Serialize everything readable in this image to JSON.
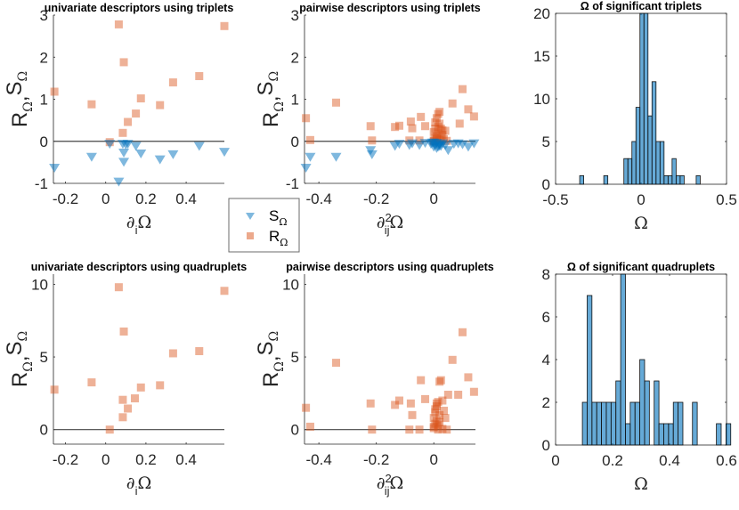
{
  "figure": {
    "legend": {
      "entries": [
        {
          "label": "S",
          "subscript": "Ω",
          "marker": "triangle-down",
          "color": "#0072BD"
        },
        {
          "label": "R",
          "subscript": "Ω",
          "marker": "square",
          "color": "#D95319"
        }
      ],
      "placement": "between top-left and top-middle panels, lower"
    },
    "colors": {
      "S": "#0072BD",
      "R": "#D95319",
      "hist": "#0072BD",
      "zero_line": "#555555"
    }
  },
  "chart_data": [
    {
      "id": "uni-trip",
      "type": "scatter",
      "title": "univariate descriptors using triplets",
      "xlabel": "∂_iΩ",
      "xlabel_main": "∂",
      "xlabel_sub": "i",
      "xlabel_tail": "Ω",
      "ylabel": "R_Ω, S_Ω",
      "xlim": [
        -0.26,
        0.59
      ],
      "ylim": [
        -1,
        3
      ],
      "xticks": [
        -0.2,
        0,
        0.2,
        0.4
      ],
      "xtick_labels": [
        "-0.2",
        "0",
        "0.2",
        "0.4"
      ],
      "yticks": [
        -1,
        0,
        1,
        2,
        3
      ],
      "ytick_labels": [
        "-1",
        "0",
        "1",
        "2",
        "3"
      ],
      "zero_line": true,
      "series": [
        {
          "name": "R_Ω",
          "marker": "square",
          "x": [
            -0.255,
            -0.07,
            0.02,
            0.065,
            0.09,
            0.085,
            0.11,
            0.15,
            0.175,
            0.27,
            0.335,
            0.465,
            0.59
          ],
          "y": [
            1.18,
            0.88,
            -0.02,
            2.78,
            1.88,
            0.2,
            0.46,
            0.66,
            1.02,
            0.86,
            1.4,
            1.55,
            2.74
          ]
        },
        {
          "name": "S_Ω",
          "marker": "triangle-down",
          "x": [
            -0.255,
            -0.07,
            0.02,
            0.065,
            0.085,
            0.09,
            0.09,
            0.1,
            0.11,
            0.15,
            0.175,
            0.27,
            0.335,
            0.465,
            0.59
          ],
          "y": [
            -0.62,
            -0.36,
            -0.05,
            -0.95,
            -0.05,
            -0.26,
            -0.48,
            -0.07,
            -0.05,
            -0.1,
            -0.28,
            -0.42,
            -0.3,
            -0.1,
            -0.24
          ]
        }
      ]
    },
    {
      "id": "pair-trip",
      "type": "scatter",
      "title": "pairwise descriptors using triplets",
      "xlabel": "∂²_ijΩ",
      "xlabel_main": "∂",
      "xlabel_sup": "2",
      "xlabel_sub": "ij",
      "xlabel_tail": "Ω",
      "ylabel": "R_Ω, S_Ω",
      "xlim": [
        -0.45,
        0.145
      ],
      "ylim": [
        -1,
        3
      ],
      "xticks": [
        -0.4,
        -0.2,
        0
      ],
      "xtick_labels": [
        "-0.4",
        "-0.2",
        "0"
      ],
      "yticks": [
        -1,
        0,
        1,
        2,
        3
      ],
      "ytick_labels": [
        "-1",
        "0",
        "1",
        "2",
        "3"
      ],
      "zero_line": true,
      "series": [
        {
          "name": "R_Ω",
          "marker": "square",
          "x": [
            -0.445,
            -0.43,
            -0.34,
            -0.22,
            -0.215,
            -0.135,
            -0.12,
            -0.08,
            -0.075,
            -0.045,
            -0.03,
            0.0,
            0.005,
            0.01,
            0.015,
            0.02,
            0.025,
            0.03,
            0.005,
            0.01,
            0.0,
            0.015,
            0.02,
            0.03,
            0.04,
            0.065,
            0.09,
            0.1,
            0.12,
            0.14,
            -0.085,
            -0.05,
            0.0,
            0.01,
            0.02,
            0.005,
            0.015,
            0.025,
            0.035,
            0.045
          ],
          "y": [
            0.55,
            0.03,
            0.92,
            0.36,
            0.02,
            0.34,
            0.37,
            0.47,
            0.31,
            0.58,
            0.36,
            0.22,
            0.45,
            0.55,
            0.65,
            0.7,
            0.3,
            0.15,
            0.1,
            0.05,
            0.0,
            0.35,
            0.42,
            0.26,
            0.25,
            0.9,
            0.42,
            1.24,
            0.76,
            0.59,
            0.02,
            0.02,
            0.02,
            0.12,
            0.02,
            0.3,
            0.18,
            0.08,
            0.05,
            0.01
          ]
        },
        {
          "name": "S_Ω",
          "marker": "triangle-down",
          "x": [
            -0.445,
            -0.43,
            -0.34,
            -0.22,
            -0.215,
            -0.135,
            -0.12,
            -0.085,
            -0.075,
            -0.05,
            -0.03,
            -0.01,
            0.0,
            0.005,
            0.01,
            0.015,
            0.02,
            0.025,
            0.03,
            0.04,
            0.05,
            0.07,
            0.085,
            0.1,
            0.12,
            0.14,
            0.0,
            0.01,
            0.02,
            -0.005
          ],
          "y": [
            -0.62,
            -0.36,
            -0.36,
            -0.2,
            -0.3,
            -0.1,
            -0.05,
            -0.08,
            -0.04,
            -0.08,
            -0.03,
            -0.05,
            -0.12,
            -0.08,
            -0.03,
            -0.12,
            -0.06,
            -0.1,
            -0.04,
            -0.08,
            -0.2,
            -0.05,
            -0.04,
            -0.06,
            -0.12,
            -0.04,
            -0.02,
            -0.15,
            -0.1,
            -0.02
          ]
        }
      ]
    },
    {
      "id": "hist-trip",
      "type": "bar",
      "subtype": "histogram",
      "title": "Ω of significant triplets",
      "xlabel": "Ω",
      "ylabel": "",
      "xlim": [
        -0.5,
        0.5
      ],
      "ylim": [
        0,
        20
      ],
      "xticks": [
        -0.5,
        0,
        0.5
      ],
      "xtick_labels": [
        "-0.5",
        "0",
        "0.5"
      ],
      "yticks": [
        0,
        5,
        10,
        15,
        20
      ],
      "ytick_labels": [
        "0",
        "5",
        "10",
        "15",
        "20"
      ],
      "bin_start": -0.359,
      "bin_width": 0.0235,
      "counts": [
        1,
        0,
        0,
        0,
        0,
        0,
        1,
        0,
        0,
        0,
        0,
        3,
        3,
        5,
        9,
        20,
        20,
        8,
        12,
        5,
        5,
        1,
        1,
        3,
        1,
        1,
        0,
        0,
        0,
        1
      ]
    },
    {
      "id": "uni-quad",
      "type": "scatter",
      "title": "univariate descriptors using quadruplets",
      "xlabel": "∂_iΩ",
      "xlabel_main": "∂",
      "xlabel_sub": "i",
      "xlabel_tail": "Ω",
      "ylabel": "R_Ω, S_Ω",
      "xlim": [
        -0.26,
        0.59
      ],
      "ylim": [
        -1,
        10.7
      ],
      "xticks": [
        -0.2,
        0,
        0.2,
        0.4
      ],
      "xtick_labels": [
        "-0.2",
        "0",
        "0.2",
        "0.4"
      ],
      "yticks": [
        0,
        5,
        10
      ],
      "ytick_labels": [
        "0",
        "5",
        "10"
      ],
      "zero_line": true,
      "series": [
        {
          "name": "R_Ω",
          "marker": "square",
          "x": [
            -0.255,
            -0.07,
            0.02,
            0.065,
            0.09,
            0.085,
            0.085,
            0.11,
            0.145,
            0.175,
            0.27,
            0.335,
            0.465,
            0.59
          ],
          "y": [
            2.75,
            3.25,
            0.0,
            9.8,
            6.75,
            2.05,
            0.85,
            1.45,
            2.15,
            2.9,
            3.05,
            5.25,
            5.4,
            9.55
          ]
        }
      ]
    },
    {
      "id": "pair-quad",
      "type": "scatter",
      "title": "pairwise descriptors using quadruplets",
      "xlabel": "∂²_ijΩ",
      "xlabel_main": "∂",
      "xlabel_sup": "2",
      "xlabel_sub": "ij",
      "xlabel_tail": "Ω",
      "ylabel": "R_Ω, S_Ω",
      "xlim": [
        -0.45,
        0.145
      ],
      "ylim": [
        -1,
        10.7
      ],
      "xticks": [
        -0.4,
        -0.2,
        0
      ],
      "xtick_labels": [
        "-0.4",
        "-0.2",
        "0"
      ],
      "yticks": [
        0,
        5,
        10
      ],
      "ytick_labels": [
        "0",
        "5",
        "10"
      ],
      "zero_line": true,
      "series": [
        {
          "name": "R_Ω",
          "marker": "square",
          "x": [
            -0.445,
            -0.43,
            -0.34,
            -0.22,
            -0.215,
            -0.135,
            -0.12,
            -0.085,
            -0.08,
            -0.075,
            -0.05,
            -0.045,
            -0.03,
            0.0,
            0.005,
            0.01,
            0.015,
            0.02,
            0.025,
            0.03,
            0.035,
            0.04,
            0.045,
            0.05,
            0.065,
            0.085,
            0.1,
            0.12,
            0.14,
            0.0,
            0.005,
            0.01,
            0.015,
            0.02,
            0.005,
            0.01,
            0.015,
            0.0,
            0.02,
            0.03
          ],
          "y": [
            1.5,
            0.2,
            4.6,
            1.8,
            0.0,
            1.7,
            2.0,
            0.0,
            1.8,
            1.0,
            0.0,
            3.4,
            2.1,
            0.8,
            1.2,
            1.6,
            1.9,
            3.3,
            3.4,
            2.0,
            1.3,
            0.8,
            0.0,
            2.4,
            4.8,
            2.4,
            6.7,
            3.6,
            2.6,
            0.2,
            0.4,
            0.6,
            0.0,
            1.0,
            1.4,
            1.8,
            0.3,
            0.1,
            0.5,
            0.05
          ]
        }
      ]
    },
    {
      "id": "hist-quad",
      "type": "bar",
      "subtype": "histogram",
      "title": "Ω of significant quadruplets",
      "xlabel": "Ω",
      "ylabel": "",
      "xlim": [
        0,
        0.6
      ],
      "ylim": [
        0,
        8
      ],
      "xticks": [
        0,
        0.2,
        0.4,
        0.6
      ],
      "xtick_labels": [
        "0",
        "0.2",
        "0.4",
        "0.6"
      ],
      "yticks": [
        0,
        2,
        4,
        6,
        8
      ],
      "ytick_labels": [
        "0",
        "2",
        "4",
        "6",
        "8"
      ],
      "bin_start": 0.094,
      "bin_width": 0.0168,
      "counts": [
        2,
        7,
        2,
        2,
        2,
        2,
        2,
        3,
        8,
        1,
        2,
        2,
        4,
        3,
        0,
        3,
        1,
        1,
        1,
        2,
        2,
        0,
        0,
        2,
        0,
        0,
        0,
        0,
        1,
        0,
        1
      ]
    }
  ]
}
